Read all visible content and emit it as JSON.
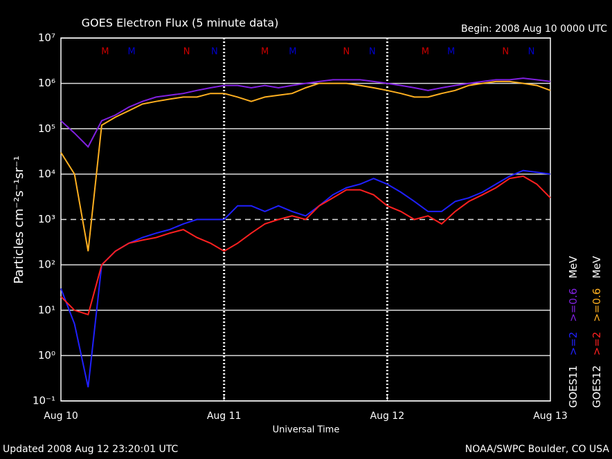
{
  "chart_data": {
    "type": "line",
    "title": "GOES Electron Flux (5 minute data)",
    "subtitle": "Begin: 2008 Aug 10 0000 UTC",
    "x_label": "Universal Time",
    "y_label": "Particles cm⁻²s⁻¹sr⁻¹",
    "footer_left": "Updated 2008 Aug 12 23:20:01 UTC",
    "footer_right": "NOAA/SWPC Boulder, CO USA",
    "log_y": true,
    "grid": true,
    "threshold": 1000,
    "xlim": [
      0,
      72
    ],
    "xticks": [
      {
        "value": 0,
        "label": "Aug 10"
      },
      {
        "value": 24,
        "label": "Aug 11"
      },
      {
        "value": 48,
        "label": "Aug 12"
      },
      {
        "value": 72,
        "label": "Aug 13"
      }
    ],
    "ylim": [
      0.1,
      10000000
    ],
    "yticks": [
      {
        "value": 0.1,
        "label": "10⁻¹"
      },
      {
        "value": 1,
        "label": "10⁰"
      },
      {
        "value": 10,
        "label": "10¹"
      },
      {
        "value": 100,
        "label": "10²"
      },
      {
        "value": 1000,
        "label": "10³"
      },
      {
        "value": 10000,
        "label": "10⁴"
      },
      {
        "value": 100000,
        "label": "10⁵"
      },
      {
        "value": 1000000,
        "label": "10⁶"
      },
      {
        "value": 10000000,
        "label": "10⁷"
      }
    ],
    "x": [
      0,
      2,
      4,
      6,
      8,
      10,
      12,
      14,
      16,
      18,
      20,
      22,
      24,
      26,
      28,
      30,
      32,
      34,
      36,
      38,
      40,
      42,
      44,
      46,
      48,
      50,
      52,
      54,
      56,
      58,
      60,
      62,
      64,
      66,
      68,
      70,
      72
    ],
    "legend_groups": [
      {
        "satellite": "GOES11",
        "unit": "MeV",
        "series": [
          0,
          1
        ]
      },
      {
        "satellite": "GOES12",
        "unit": "MeV",
        "series": [
          2,
          3
        ]
      }
    ],
    "series": [
      {
        "name": ">=2",
        "color": "#2020ff",
        "values": [
          30,
          5,
          0.2,
          100,
          200,
          300,
          400,
          500,
          600,
          800,
          1000,
          1000,
          1000,
          2000,
          2000,
          1500,
          2000,
          1500,
          1200,
          2000,
          3500,
          5000,
          6000,
          8000,
          6000,
          4000,
          2500,
          1500,
          1500,
          2500,
          3000,
          4000,
          6000,
          9000,
          12000,
          11000,
          10000
        ]
      },
      {
        "name": ">=0.6",
        "color": "#8020e0",
        "values": [
          150000,
          80000,
          40000,
          150000,
          200000,
          300000,
          400000,
          500000,
          550000,
          600000,
          700000,
          800000,
          900000,
          900000,
          800000,
          900000,
          800000,
          900000,
          1000000,
          1100000,
          1200000,
          1200000,
          1200000,
          1100000,
          1000000,
          900000,
          800000,
          700000,
          800000,
          900000,
          1000000,
          1100000,
          1200000,
          1200000,
          1300000,
          1200000,
          1100000
        ]
      },
      {
        "name": ">=2",
        "color": "#ff2020",
        "values": [
          20,
          10,
          8,
          100,
          200,
          300,
          350,
          400,
          500,
          600,
          400,
          300,
          200,
          300,
          500,
          800,
          1000,
          1200,
          1000,
          2000,
          3000,
          4500,
          4500,
          3500,
          2000,
          1500,
          1000,
          1200,
          800,
          1500,
          2500,
          3500,
          5000,
          8000,
          9000,
          6000,
          3000
        ]
      },
      {
        "name": ">=0.6",
        "color": "#ffb020",
        "values": [
          30000,
          10000,
          200,
          120000,
          180000,
          250000,
          350000,
          400000,
          450000,
          500000,
          500000,
          600000,
          600000,
          500000,
          400000,
          500000,
          550000,
          600000,
          800000,
          1000000,
          1000000,
          1000000,
          900000,
          800000,
          700000,
          600000,
          500000,
          500000,
          600000,
          700000,
          900000,
          1000000,
          1100000,
          1100000,
          1000000,
          900000,
          700000
        ]
      }
    ],
    "annotations": [
      {
        "x": 6.5,
        "label": "M",
        "color": "#cc0000"
      },
      {
        "x": 10.4,
        "label": "M",
        "color": "#0000cc"
      },
      {
        "x": 18.5,
        "label": "N",
        "color": "#cc0000"
      },
      {
        "x": 22.6,
        "label": "N",
        "color": "#0000cc"
      },
      {
        "x": 30,
        "label": "M",
        "color": "#cc0000"
      },
      {
        "x": 34.1,
        "label": "M",
        "color": "#0000cc"
      },
      {
        "x": 42,
        "label": "N",
        "color": "#cc0000"
      },
      {
        "x": 45.8,
        "label": "N",
        "color": "#0000cc"
      },
      {
        "x": 53.6,
        "label": "M",
        "color": "#cc0000"
      },
      {
        "x": 57.4,
        "label": "M",
        "color": "#0000cc"
      },
      {
        "x": 65.4,
        "label": "N",
        "color": "#cc0000"
      },
      {
        "x": 69.2,
        "label": "N",
        "color": "#0000cc"
      }
    ]
  }
}
